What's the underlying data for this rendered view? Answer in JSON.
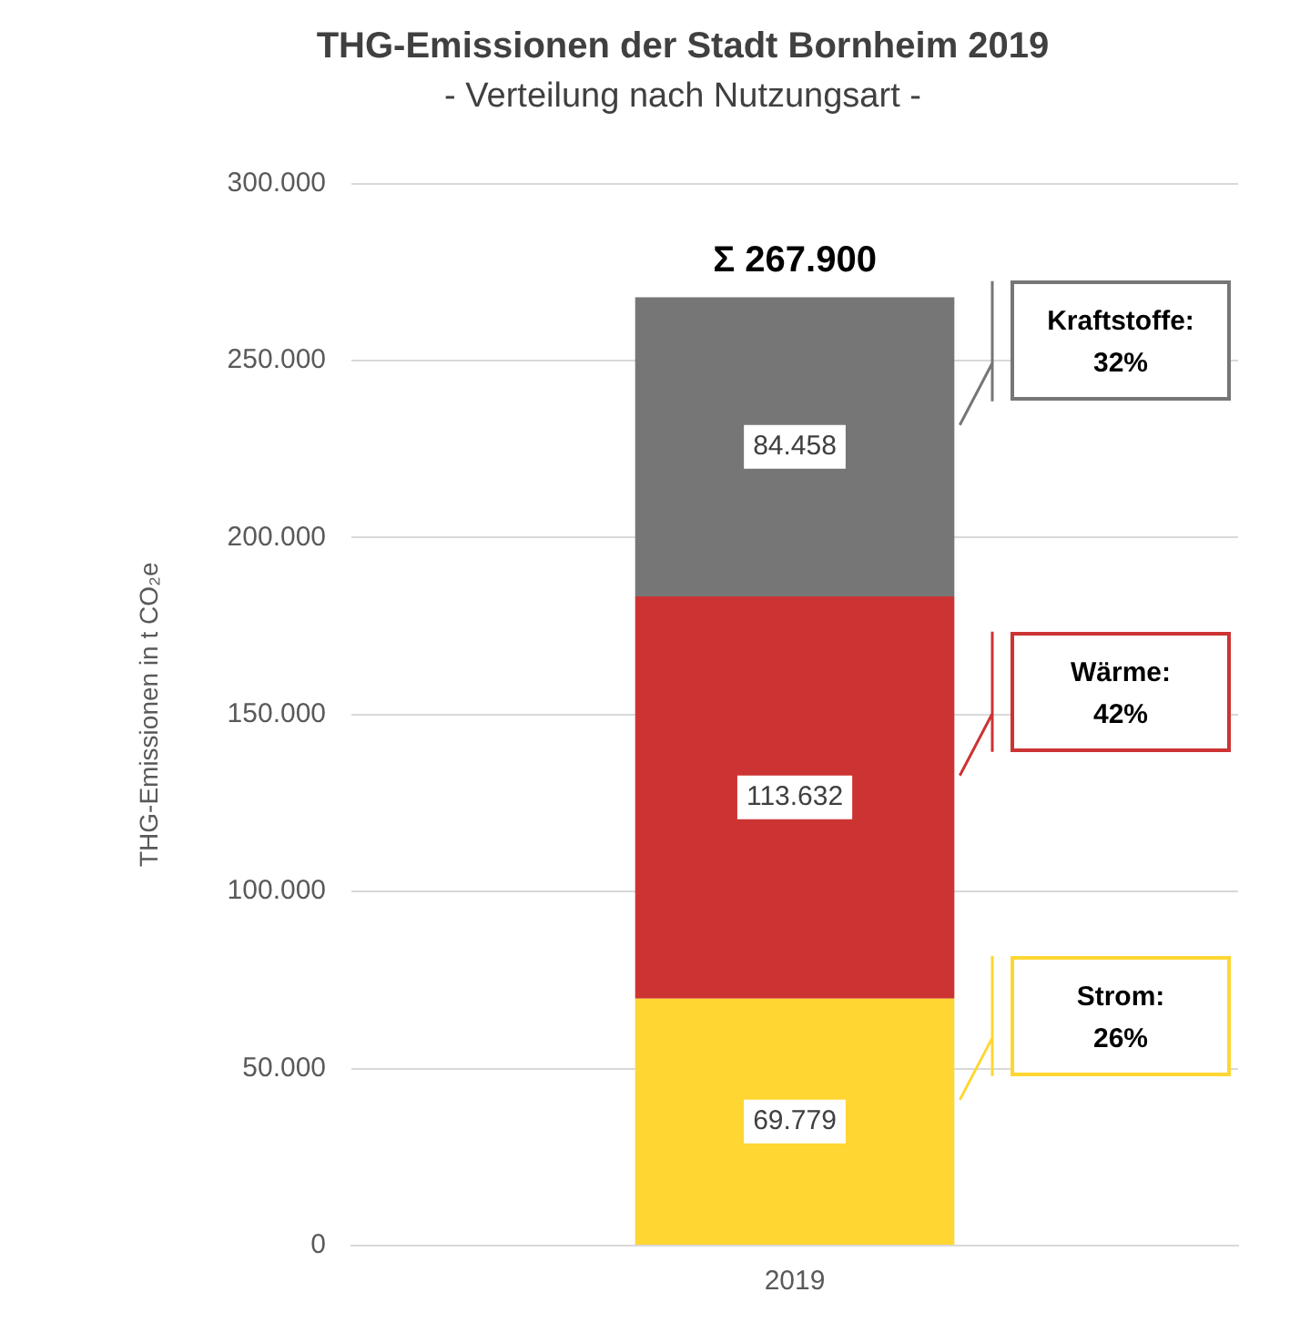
{
  "chart_data": {
    "type": "bar",
    "title": "THG-Emissionen der Stadt Bornheim 2019",
    "subtitle": "- Verteilung nach Nutzungsart -",
    "ylabel": "THG-Emissionen in t CO₂e",
    "categories": [
      "2019"
    ],
    "stacked": true,
    "series": [
      {
        "name": "Strom:",
        "color": "#ffd632",
        "values": [
          69779
        ],
        "value_labels": [
          "69.779"
        ]
      },
      {
        "name": "Wärme:",
        "color": "#cc3333",
        "values": [
          113632
        ],
        "value_labels": [
          "113.632"
        ]
      },
      {
        "name": "Kraftstoffe:",
        "color": "#767676",
        "values": [
          84458
        ],
        "value_labels": [
          "84.458"
        ]
      }
    ],
    "annotations": [
      "26%",
      "42%",
      "32%"
    ],
    "totals": [
      "Σ 267.900"
    ],
    "ylim": [
      0,
      300000
    ],
    "yticks": [
      {
        "value": 0,
        "label": "0"
      },
      {
        "value": 50000,
        "label": "50.000"
      },
      {
        "value": 100000,
        "label": "100.000"
      },
      {
        "value": 150000,
        "label": "150.000"
      },
      {
        "value": 200000,
        "label": "200.000"
      },
      {
        "value": 250000,
        "label": "250.000"
      },
      {
        "value": 300000,
        "label": "300.000"
      }
    ],
    "grid": "y",
    "legend": false
  }
}
